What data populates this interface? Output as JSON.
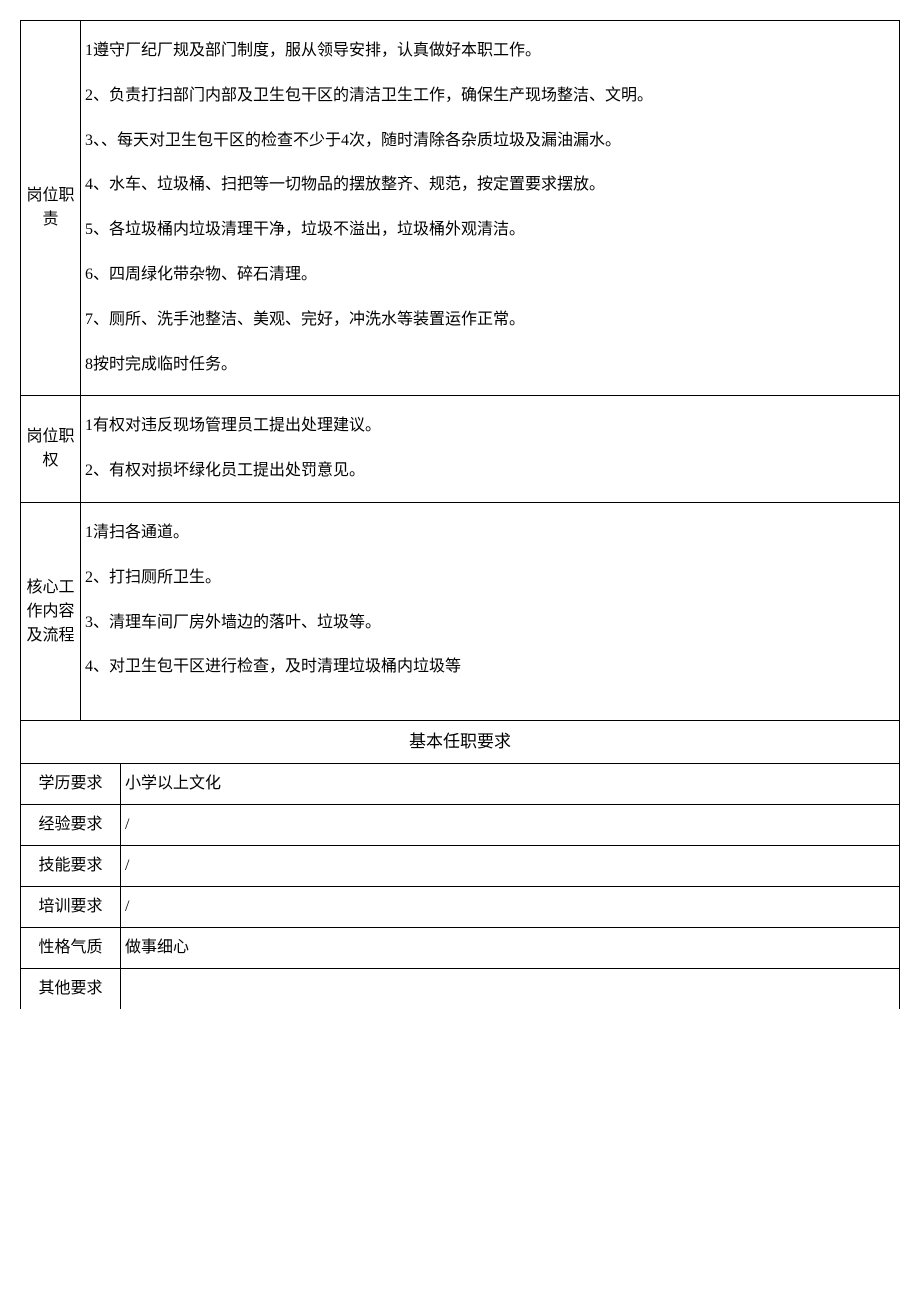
{
  "sections": {
    "duties": {
      "label": "岗位职责",
      "items": [
        "1遵守厂纪厂规及部门制度，服从领导安排，认真做好本职工作。",
        "2、负责打扫部门内部及卫生包干区的清洁卫生工作，确保生产现场整洁、文明。",
        "3、、每天对卫生包干区的检查不少于4次，随时清除各杂质垃圾及漏油漏水。",
        "4、水车、垃圾桶、扫把等一切物品的摆放整齐、规范，按定置要求摆放。",
        "5、各垃圾桶内垃圾清理干净，垃圾不溢出，垃圾桶外观清洁。",
        "6、四周绿化带杂物、碎石清理。",
        "7、厕所、洗手池整洁、美观、完好，冲洗水等装置运作正常。",
        "8按时完成临时任务。"
      ]
    },
    "authority": {
      "label": "岗位职权",
      "items": [
        "1有权对违反现场管理员工提出处理建议。",
        "2、有权对损坏绿化员工提出处罚意见。"
      ]
    },
    "core_work": {
      "label": "核心工作内容及流程",
      "items": [
        "1清扫各通道。",
        "2、打扫厕所卫生。",
        "3、清理车间厂房外墙边的落叶、垃圾等。",
        "4、对卫生包干区进行检查，及时清理垃圾桶内垃圾等"
      ]
    },
    "requirements_header": "基本任职要求",
    "requirements": {
      "education": {
        "label": "学历要求",
        "value": "小学以上文化"
      },
      "experience": {
        "label": "经验要求",
        "value": "/"
      },
      "skills": {
        "label": "技能要求",
        "value": "/"
      },
      "training": {
        "label": "培训要求",
        "value": "/"
      },
      "personality": {
        "label": "性格气质",
        "value": "做事细心"
      },
      "other": {
        "label": "其他要求",
        "value": ""
      }
    }
  }
}
